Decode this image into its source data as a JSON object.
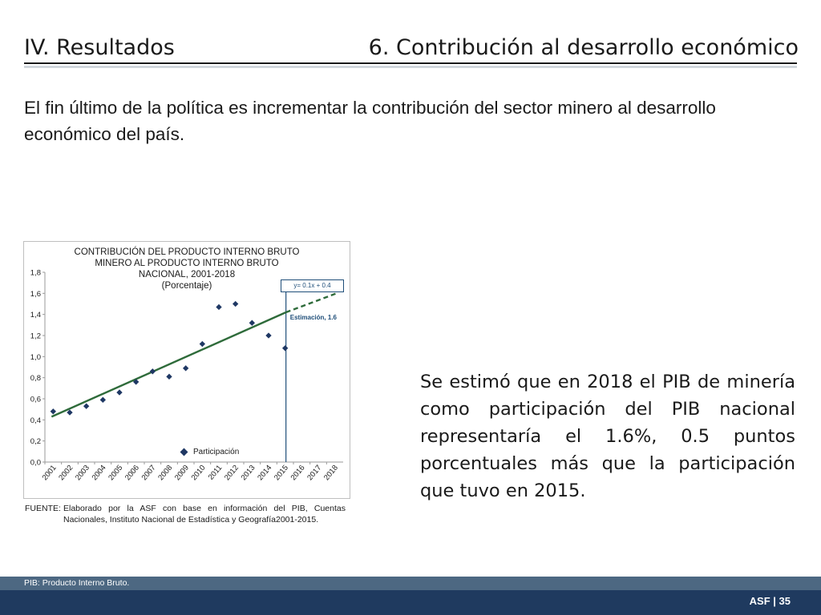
{
  "header": {
    "section": "IV. Resultados",
    "topic": "6. Contribución al desarrollo económico"
  },
  "intro_text": "El fin último de la política es incrementar la contribución del sector minero al desarrollo económico del país.",
  "chart_data": {
    "type": "scatter",
    "title": "CONTRIBUCIÓN DEL PRODUCTO INTERNO BRUTO MINERO AL PRODUCTO INTERNO BRUTO NACIONAL, 2001-2018",
    "subtitle": "(Porcentaje)",
    "x": [
      "2001",
      "2002",
      "2003",
      "2004",
      "2005",
      "2006",
      "2007",
      "2008",
      "2009",
      "2010",
      "2011",
      "2012",
      "2013",
      "2014",
      "2015",
      "2016",
      "2017",
      "2018"
    ],
    "series": [
      {
        "name": "Participación",
        "values": [
          0.48,
          0.47,
          0.53,
          0.59,
          0.66,
          0.76,
          0.86,
          0.81,
          0.89,
          1.12,
          1.47,
          1.5,
          1.32,
          1.2,
          1.08,
          null,
          null,
          null
        ]
      }
    ],
    "trendline": {
      "equation": "y= 0.1x + 0.4",
      "fitted_start": 0.43,
      "fitted_end_2015": 1.42,
      "projected_2018": 1.6
    },
    "annotation": "Estimación, 1.6",
    "y_ticks": [
      "0,0",
      "0,2",
      "0,4",
      "0,6",
      "0,8",
      "1,0",
      "1,2",
      "1,4",
      "1,6",
      "1,8"
    ],
    "ylim": [
      0,
      1.8
    ],
    "grid": false,
    "legend_position": "bottom-center",
    "colors": {
      "marker": "#1f3864",
      "trend": "#2e6b3a",
      "divider": "#1f4e79"
    }
  },
  "source": {
    "key": "FUENTE:",
    "text": "Elaborado por la ASF con base en información del PIB, Cuentas Nacionales, Instituto Nacional de Estadística y Geografía2001-2015."
  },
  "side_text": "Se estimó que en 2018 el PIB de minería como participación del PIB nacional representaría el 1.6%, 0.5 puntos porcentuales más que la participación que tuvo en 2015.",
  "footer": {
    "note": "PIB: Producto Interno Bruto.",
    "page": "ASF | 35"
  },
  "colors": {
    "footer_band": "#1f3a5f",
    "footer_stripe": "#4d6882"
  }
}
